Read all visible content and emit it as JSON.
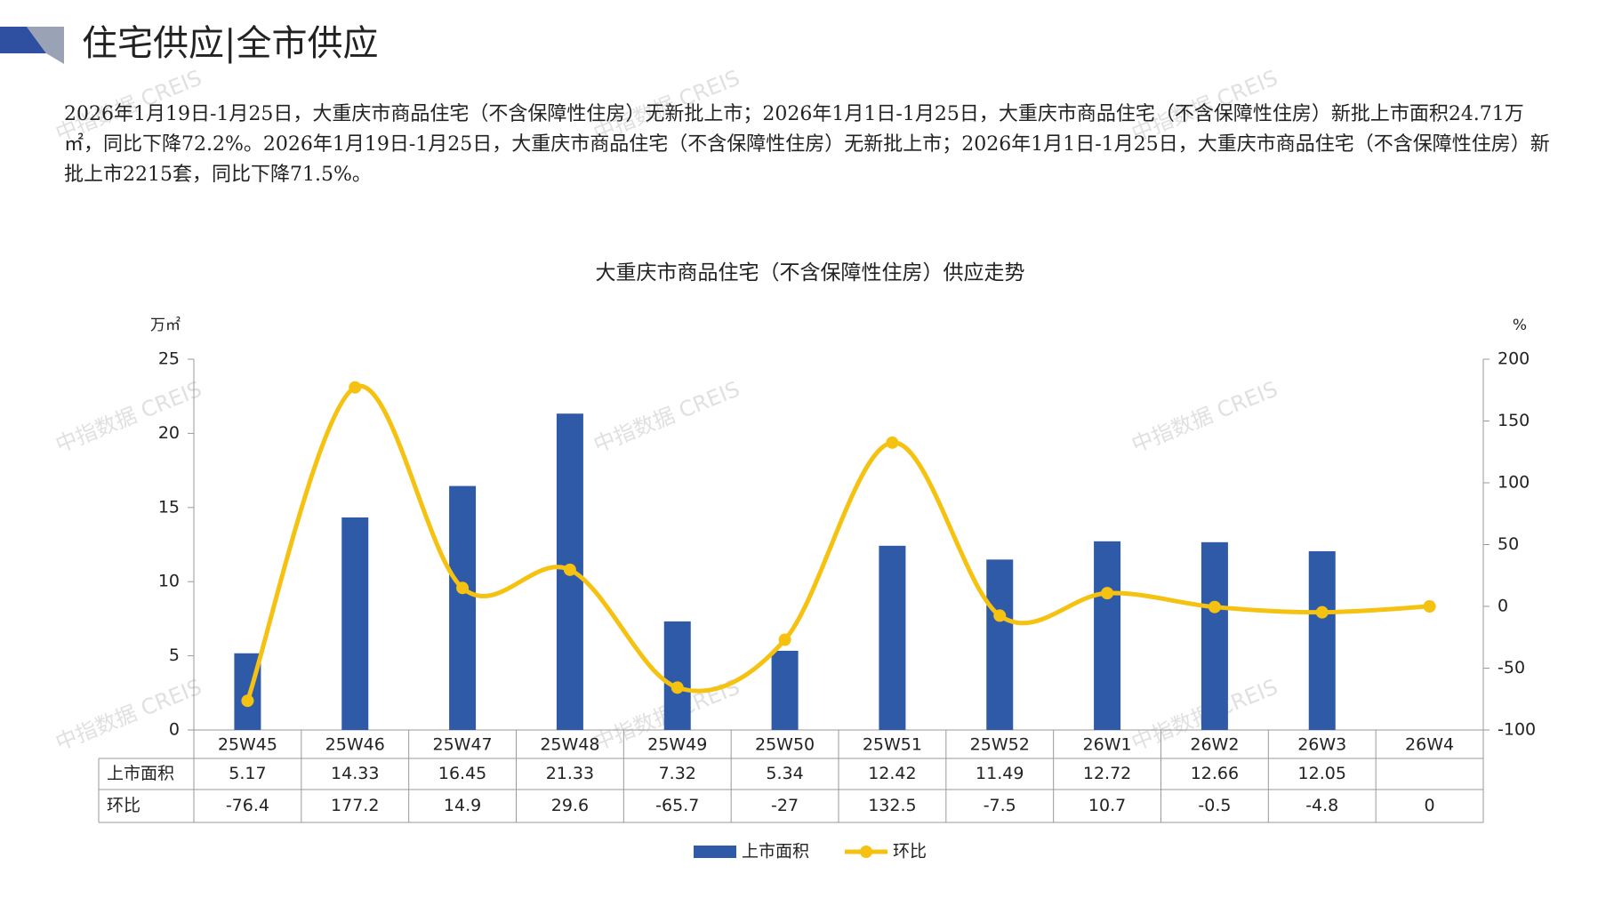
{
  "header": {
    "title": "住宅供应|全市供应"
  },
  "paragraph": "2026年1月19日-1月25日，大重庆市商品住宅（不含保障性住房）无新批上市；2026年1月1日-1月25日，大重庆市商品住宅（不含保障性住房）新批上市面积24.71万㎡，同比下降72.2%。2026年1月19日-1月25日，大重庆市商品住宅（不含保障性住房）无新批上市；2026年1月1日-1月25日，大重庆市商品住宅（不含保障性住房）新批上市2215套，同比下降71.5%。",
  "watermark": "中指数据 CREIS",
  "chart_data": {
    "type": "combo",
    "title": "大重庆市商品住宅（不含保障性住房）供应走势",
    "y_label": "万㎡",
    "y2_label": "%",
    "categories": [
      "25W45",
      "25W46",
      "25W47",
      "25W48",
      "25W49",
      "25W50",
      "25W51",
      "25W52",
      "26W1",
      "26W2",
      "26W3",
      "26W4"
    ],
    "series": [
      {
        "name": "上市面积",
        "type": "bar",
        "color": "#2f5aa8",
        "values": [
          5.17,
          14.33,
          16.45,
          21.33,
          7.32,
          5.34,
          12.42,
          11.49,
          12.72,
          12.66,
          12.05,
          null
        ]
      },
      {
        "name": "环比",
        "type": "line",
        "axis": "y2",
        "color": "#f5c211",
        "values": [
          -76.4,
          177.2,
          14.9,
          29.6,
          -65.7,
          -27,
          132.5,
          -7.5,
          10.7,
          -0.5,
          -4.8,
          0
        ]
      }
    ],
    "ylim": [
      0,
      25
    ],
    "yticks": [
      0,
      5,
      10,
      15,
      20,
      25
    ],
    "y2lim": [
      -100,
      200
    ],
    "y2ticks": [
      -100,
      -50,
      0,
      50,
      100,
      150,
      200
    ],
    "data_table": true,
    "legend": "bottom"
  }
}
